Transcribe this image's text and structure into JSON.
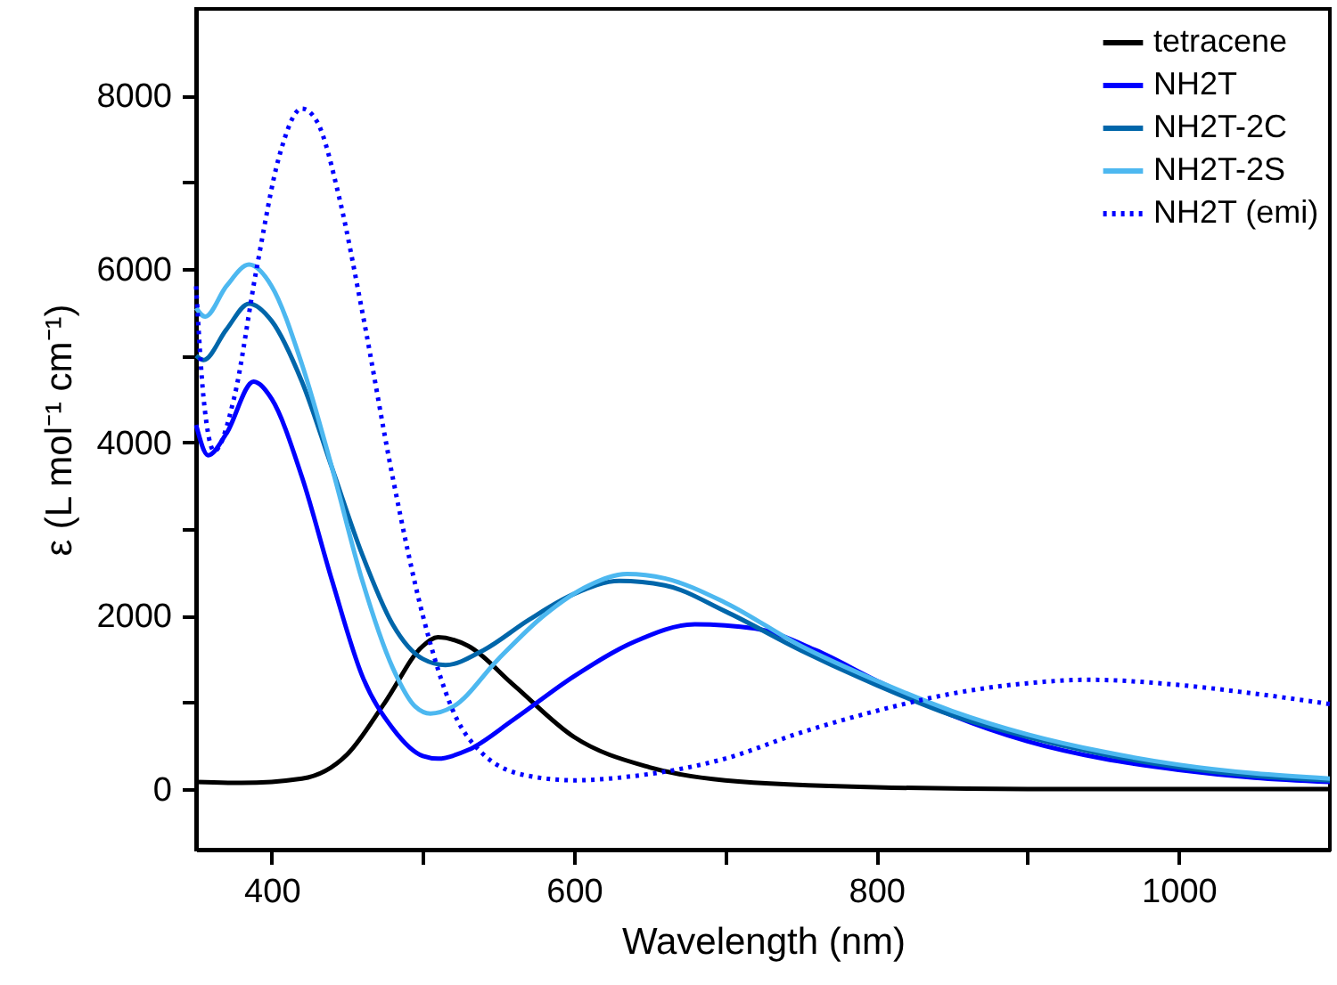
{
  "chart_data": {
    "type": "line",
    "xlabel": "Wavelength (nm)",
    "ylabel": "ε (L mol⁻¹ cm⁻¹)",
    "xlim": [
      350,
      1100
    ],
    "xticks": [
      400,
      {
        "value": 500,
        "label": null
      },
      600,
      {
        "value": 700,
        "label": null
      },
      800,
      {
        "value": 900,
        "label": null
      },
      1000
    ],
    "ylim": [
      -700,
      9000
    ],
    "yticks": [
      0,
      {
        "value": 1000,
        "label": null
      },
      2000,
      {
        "value": 3000,
        "label": null
      },
      4000,
      {
        "value": 5000,
        "label": null
      },
      6000,
      {
        "value": 7000,
        "label": null
      },
      8000
    ],
    "legend": "top right",
    "grid": false,
    "marker": "none",
    "series": [
      {
        "name": "tetracene",
        "color": "#000000",
        "line_style": "solid",
        "x": [
          350,
          380,
          420,
          450,
          475,
          500,
          510,
          530,
          560,
          600,
          650,
          700,
          800,
          900,
          1100
        ],
        "values": [
          80,
          70,
          120,
          400,
          1000,
          1650,
          1750,
          1650,
          1200,
          600,
          250,
          100,
          20,
          0,
          0
        ]
      },
      {
        "name": "NH2T",
        "color": "#0000ff",
        "line_style": "solid",
        "x": [
          350,
          358,
          370,
          388,
          400,
          420,
          440,
          460,
          480,
          500,
          510,
          530,
          560,
          600,
          640,
          680,
          720,
          760,
          800,
          850,
          900,
          950,
          1000,
          1050,
          1100
        ],
        "values": [
          4200,
          3850,
          4100,
          4700,
          4500,
          3600,
          2400,
          1300,
          700,
          380,
          350,
          450,
          800,
          1300,
          1700,
          1900,
          1850,
          1600,
          1250,
          850,
          550,
          350,
          220,
          130,
          80
        ]
      },
      {
        "name": "NH2T-2C",
        "color": "#0066aa",
        "line_style": "solid",
        "x": [
          350,
          355,
          370,
          385,
          400,
          420,
          440,
          460,
          480,
          500,
          515,
          540,
          570,
          600,
          630,
          660,
          700,
          750,
          800,
          850,
          900,
          950,
          1000,
          1050,
          1100
        ],
        "values": [
          5000,
          4950,
          5300,
          5600,
          5400,
          4700,
          3700,
          2700,
          1900,
          1500,
          1430,
          1600,
          1950,
          2250,
          2400,
          2350,
          2050,
          1600,
          1200,
          850,
          600,
          400,
          250,
          150,
          100
        ]
      },
      {
        "name": "NH2T-2S",
        "color": "#4db8f0",
        "line_style": "solid",
        "x": [
          350,
          356,
          370,
          385,
          400,
          420,
          440,
          460,
          480,
          495,
          505,
          520,
          550,
          580,
          610,
          635,
          660,
          700,
          750,
          800,
          850,
          900,
          950,
          1000,
          1050,
          1100
        ],
        "values": [
          5550,
          5450,
          5800,
          6050,
          5800,
          4900,
          3700,
          2400,
          1400,
          950,
          870,
          950,
          1500,
          2000,
          2350,
          2480,
          2430,
          2150,
          1650,
          1250,
          900,
          630,
          430,
          280,
          180,
          120
        ]
      },
      {
        "name": "NH2T (emi)",
        "color": "#0000ff",
        "line_style": "dotted",
        "x": [
          350,
          355,
          362,
          375,
          390,
          405,
          420,
          430,
          445,
          460,
          480,
          500,
          520,
          540,
          570,
          600,
          640,
          700,
          750,
          800,
          850,
          900,
          940,
          1000,
          1050,
          1100
        ],
        "values": [
          5800,
          4500,
          3900,
          4500,
          6000,
          7300,
          7850,
          7700,
          6800,
          5500,
          3600,
          2000,
          900,
          400,
          150,
          100,
          150,
          350,
          650,
          900,
          1100,
          1220,
          1260,
          1200,
          1100,
          980
        ]
      }
    ]
  }
}
